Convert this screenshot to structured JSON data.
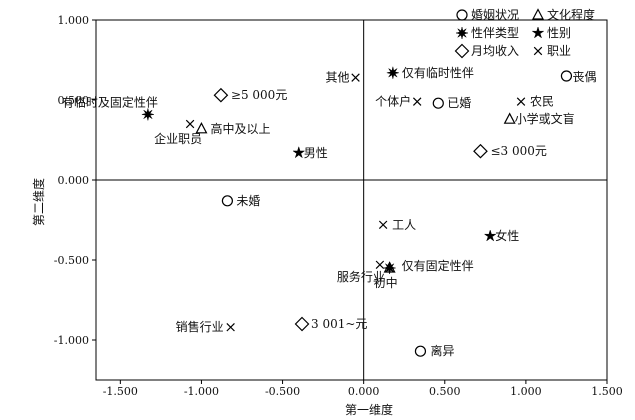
{
  "chart_data": {
    "type": "scatter",
    "title": "",
    "xlabel": "第一维度",
    "ylabel": "第二维度",
    "xlim": [
      -1.65,
      1.5
    ],
    "ylim": [
      -1.25,
      1.0
    ],
    "grid": false,
    "x_ticks": [
      {
        "value": -1.5,
        "label": "-1.500"
      },
      {
        "value": -1.0,
        "label": "-1.000"
      },
      {
        "value": -0.5,
        "label": "-0.500"
      },
      {
        "value": 0.0,
        "label": "0.000"
      },
      {
        "value": 0.5,
        "label": "0.500"
      },
      {
        "value": 1.0,
        "label": "1.000"
      },
      {
        "value": 1.5,
        "label": "1.500"
      }
    ],
    "y_ticks": [
      {
        "value": 1.0,
        "label": "1.000"
      },
      {
        "value": 0.5,
        "label": "0.500"
      },
      {
        "value": 0.0,
        "label": "0.000"
      },
      {
        "value": -0.5,
        "label": "-0.500"
      },
      {
        "value": -1.0,
        "label": "-1.000"
      }
    ],
    "legend_placement": "top-right",
    "legend": [
      {
        "marker": "circle",
        "label": "婚姻状况"
      },
      {
        "marker": "triangle",
        "label": "文化程度"
      },
      {
        "marker": "burst",
        "label": "性伴类型"
      },
      {
        "marker": "star",
        "label": "性别"
      },
      {
        "marker": "diamond",
        "label": "月均收入"
      },
      {
        "marker": "cross",
        "label": "职业"
      }
    ],
    "series": [
      {
        "name": "婚姻状况",
        "marker": "circle",
        "points": [
          {
            "label": "丧偶",
            "x": 1.25,
            "y": 0.65
          },
          {
            "label": "已婚",
            "x": 0.46,
            "y": 0.48
          },
          {
            "label": "未婚",
            "x": -0.84,
            "y": -0.13
          },
          {
            "label": "离异",
            "x": 0.35,
            "y": -1.07
          }
        ]
      },
      {
        "name": "文化程度",
        "marker": "triangle",
        "points": [
          {
            "label": "高中及以上",
            "x": -1.0,
            "y": 0.32
          },
          {
            "label": "小学或文盲",
            "x": 0.9,
            "y": 0.38
          },
          {
            "label": "初中",
            "x": 0.16,
            "y": -0.55
          }
        ]
      },
      {
        "name": "性伴类型",
        "marker": "burst",
        "points": [
          {
            "label": "有临时及固定性伴",
            "x": -1.33,
            "y": 0.41
          },
          {
            "label": "仅有临时性伴",
            "x": 0.18,
            "y": 0.67
          },
          {
            "label": "仅有固定性伴",
            "x": 0.16,
            "y": -0.55
          }
        ]
      },
      {
        "name": "性别",
        "marker": "star",
        "points": [
          {
            "label": "男性",
            "x": -0.4,
            "y": 0.17
          },
          {
            "label": "女性",
            "x": 0.78,
            "y": -0.35
          }
        ]
      },
      {
        "name": "月均收入",
        "marker": "diamond",
        "points": [
          {
            "label": "≥5 000元",
            "x": -0.88,
            "y": 0.53
          },
          {
            "label": "≤3 000元",
            "x": 0.72,
            "y": 0.18
          },
          {
            "label": "3 001~元",
            "x": -0.38,
            "y": -0.9
          }
        ]
      },
      {
        "name": "职业",
        "marker": "cross",
        "points": [
          {
            "label": "其他",
            "x": -0.05,
            "y": 0.64
          },
          {
            "label": "个体户",
            "x": 0.33,
            "y": 0.49
          },
          {
            "label": "农民",
            "x": 0.97,
            "y": 0.49
          },
          {
            "label": "企业职员",
            "x": -1.07,
            "y": 0.35
          },
          {
            "label": "工人",
            "x": 0.12,
            "y": -0.28
          },
          {
            "label": "服务行业",
            "x": 0.1,
            "y": -0.53
          },
          {
            "label": "销售行业",
            "x": -0.82,
            "y": -0.92
          }
        ]
      }
    ]
  }
}
